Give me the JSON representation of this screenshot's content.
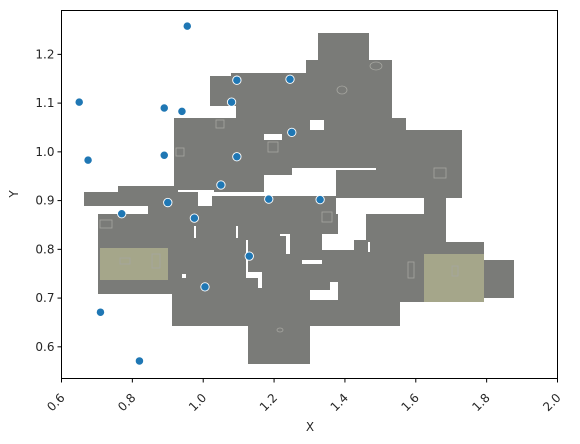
{
  "chart_data": {
    "type": "scatter",
    "title": "",
    "xlabel": "X",
    "ylabel": "Y",
    "xlim": [
      0.6,
      2.0
    ],
    "ylim": [
      0.535,
      1.29
    ],
    "xticks": [
      "0.6",
      "0.8",
      "1.0",
      "1.2",
      "1.4",
      "1.6",
      "1.8",
      "2.0"
    ],
    "yticks": [
      "0.6",
      "0.7",
      "0.8",
      "0.9",
      "1.0",
      "1.1",
      "1.2"
    ],
    "grid": false,
    "legend": "none",
    "background_image": "game-map-top-down",
    "marker_color": "#1f77b4",
    "series": [
      {
        "points": [
          {
            "x": 0.955,
            "y": 1.258
          },
          {
            "x": 0.65,
            "y": 1.102
          },
          {
            "x": 0.89,
            "y": 1.09
          },
          {
            "x": 0.94,
            "y": 1.083
          },
          {
            "x": 1.095,
            "y": 1.147
          },
          {
            "x": 1.245,
            "y": 1.149
          },
          {
            "x": 1.08,
            "y": 1.102
          },
          {
            "x": 1.25,
            "y": 1.04
          },
          {
            "x": 0.675,
            "y": 0.983
          },
          {
            "x": 0.89,
            "y": 0.993
          },
          {
            "x": 1.095,
            "y": 0.99
          },
          {
            "x": 1.05,
            "y": 0.932
          },
          {
            "x": 0.9,
            "y": 0.896
          },
          {
            "x": 1.185,
            "y": 0.903
          },
          {
            "x": 1.33,
            "y": 0.902
          },
          {
            "x": 0.77,
            "y": 0.873
          },
          {
            "x": 0.975,
            "y": 0.864
          },
          {
            "x": 1.13,
            "y": 0.786
          },
          {
            "x": 1.005,
            "y": 0.723
          },
          {
            "x": 0.71,
            "y": 0.671
          },
          {
            "x": 0.82,
            "y": 0.571
          }
        ]
      }
    ]
  }
}
